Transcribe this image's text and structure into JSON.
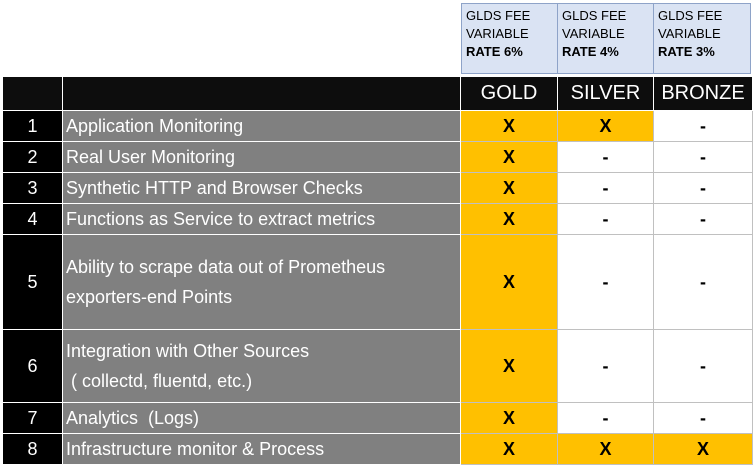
{
  "fee_headers": [
    {
      "line1": "GLDS FEE",
      "line2": "VARIABLE",
      "line3": "RATE 6%"
    },
    {
      "line1": "GLDS FEE",
      "line2": "VARIABLE",
      "line3": "RATE 4%"
    },
    {
      "line1": "GLDS FEE",
      "line2": "VARIABLE",
      "line3": "RATE 3%"
    }
  ],
  "tiers": [
    "GOLD",
    "SILVER",
    "BRONZE"
  ],
  "rows": [
    {
      "num": "1",
      "feature": "Application Monitoring",
      "gold": "X",
      "silver": "X",
      "bronze": "-"
    },
    {
      "num": "2",
      "feature": "Real User Monitoring",
      "gold": "X",
      "silver": "-",
      "bronze": "-"
    },
    {
      "num": "3",
      "feature": "Synthetic HTTP and Browser Checks",
      "gold": "X",
      "silver": "-",
      "bronze": "-"
    },
    {
      "num": "4",
      "feature": "Functions as Service to extract metrics",
      "gold": "X",
      "silver": "-",
      "bronze": "-"
    },
    {
      "num": "5",
      "feature_line1": "Ability to scrape data out of Prometheus",
      "feature_line2": "exporters-end Points",
      "gold": "X",
      "silver": "-",
      "bronze": "-"
    },
    {
      "num": "6",
      "feature_line1": "Integration with Other Sources",
      "feature_line2": " ( collectd, fluentd, etc.)",
      "gold": "X",
      "silver": "-",
      "bronze": "-"
    },
    {
      "num": "7",
      "feature": "Analytics  (Logs)",
      "gold": "X",
      "silver": "-",
      "bronze": "-"
    },
    {
      "num": "8",
      "feature": "Infrastructure monitor & Process",
      "gold": "X",
      "silver": "X",
      "bronze": "X"
    }
  ],
  "colors": {
    "highlight": "#ffc000",
    "feature_bg": "#808080",
    "number_bg": "#000000",
    "fee_bg": "#dae3f3"
  }
}
